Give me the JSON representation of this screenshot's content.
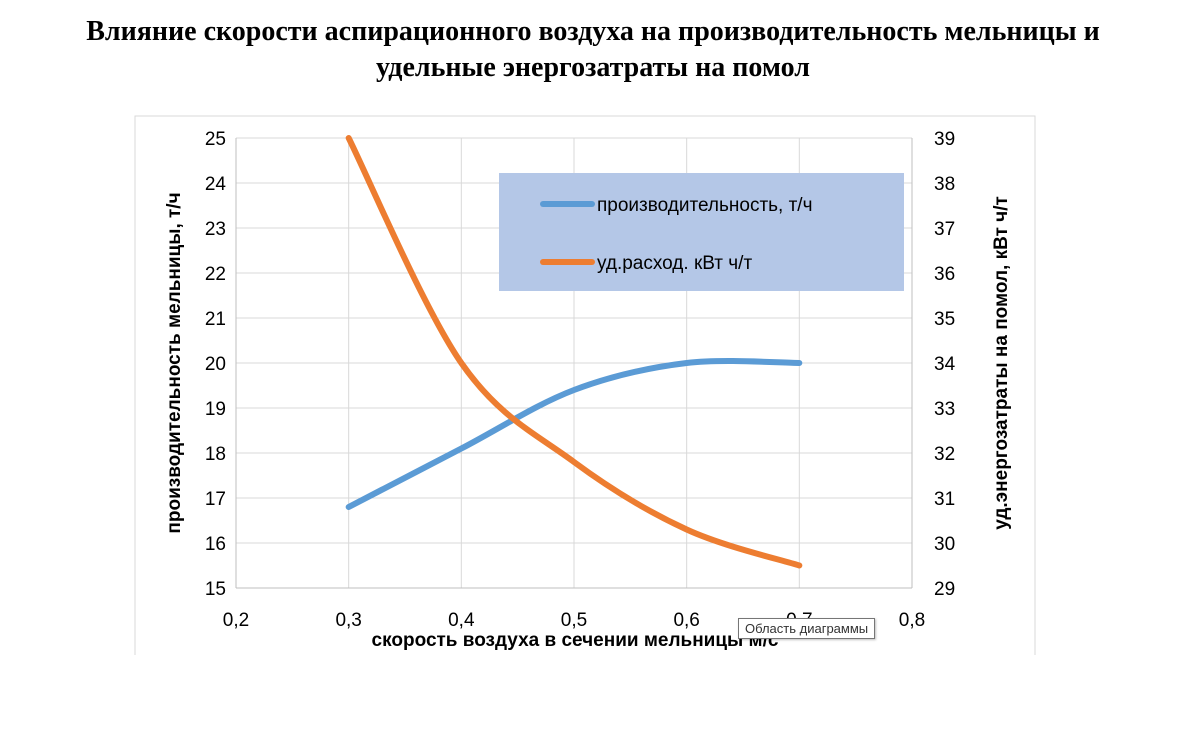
{
  "title_lines": [
    "Влияние скорости аспирационного воздуха на производительность мельницы и",
    "удельные энергозатраты на помол"
  ],
  "tooltip": "Область диаграммы",
  "colors": {
    "series1": "#5b9bd5",
    "series2": "#ed7d31",
    "legend_bg": "#b4c7e7",
    "grid": "#d9d9d9",
    "axis": "#bfbfbf",
    "frame": "#d9d9d9"
  },
  "chart_data": {
    "type": "line",
    "xlabel": "скорость воздуха в сечении  мельницы м/с",
    "ylabel_left": "производительность мельницы, т/ч",
    "ylabel_right": "уд.энергозатраты на помол, кВт ч/т",
    "xlim": [
      0.2,
      0.8
    ],
    "x_ticks": [
      "0,2",
      "0,3",
      "0,4",
      "0,5",
      "0,6",
      "0,7",
      "0,8"
    ],
    "ylim_left": [
      15,
      25
    ],
    "y_ticks_left": [
      "15",
      "16",
      "17",
      "18",
      "19",
      "20",
      "21",
      "22",
      "23",
      "24",
      "25"
    ],
    "ylim_right": [
      29,
      39
    ],
    "y_ticks_right": [
      "29",
      "30",
      "31",
      "32",
      "33",
      "34",
      "35",
      "36",
      "37",
      "38",
      "39"
    ],
    "grid": true,
    "legend_position": "top-right",
    "series": [
      {
        "name": "производительность, т/ч",
        "axis": "left",
        "color": "#5b9bd5",
        "points": [
          [
            0.3,
            16.8
          ],
          [
            0.4,
            18.1
          ],
          [
            0.5,
            19.4
          ],
          [
            0.6,
            20.0
          ],
          [
            0.7,
            20.0
          ]
        ]
      },
      {
        "name": "уд.расход. кВт ч/т",
        "axis": "right",
        "color": "#ed7d31",
        "points": [
          [
            0.3,
            39.0
          ],
          [
            0.4,
            34.0
          ],
          [
            0.5,
            31.8
          ],
          [
            0.6,
            30.3
          ],
          [
            0.7,
            29.5
          ]
        ]
      }
    ]
  }
}
